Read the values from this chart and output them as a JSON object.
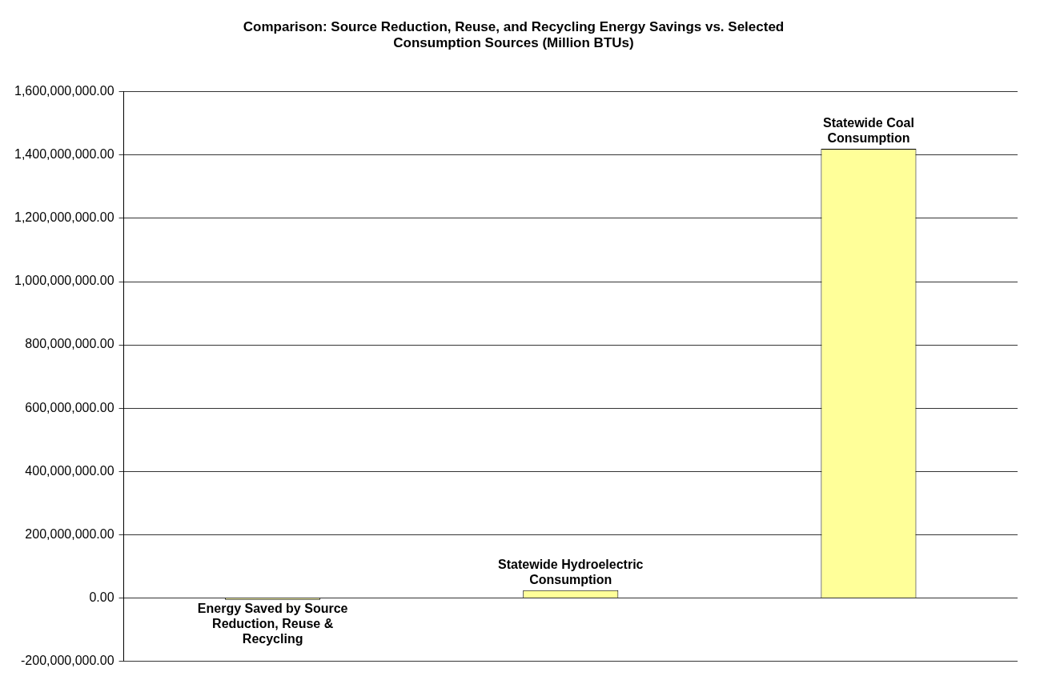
{
  "chart_data": {
    "type": "bar",
    "title": "Comparison: Source Reduction, Reuse, and Recycling Energy Savings vs. Selected Consumption Sources (Million BTUs)",
    "categories": [
      "Energy Saved by Source Reduction, Reuse & Recycling",
      "Statewide Hydroelectric Consumption",
      "Statewide Coal Consumption"
    ],
    "values": [
      -6000000,
      24000000,
      1420000000
    ],
    "color": "#ffff99",
    "ylim": [
      -200000000,
      1600000000
    ],
    "yticks": [
      {
        "value": -200000000,
        "label": "-200,000,000.00"
      },
      {
        "value": 0,
        "label": "0.00"
      },
      {
        "value": 200000000,
        "label": "200,000,000.00"
      },
      {
        "value": 400000000,
        "label": "400,000,000.00"
      },
      {
        "value": 600000000,
        "label": "600,000,000.00"
      },
      {
        "value": 800000000,
        "label": "800,000,000.00"
      },
      {
        "value": 1000000000,
        "label": "1,000,000,000.00"
      },
      {
        "value": 1200000000,
        "label": "1,200,000,000.00"
      },
      {
        "value": 1400000000,
        "label": "1,400,000,000.00"
      },
      {
        "value": 1600000000,
        "label": "1,600,000,000.00"
      }
    ],
    "grid": "y",
    "tick_labels": "y"
  }
}
